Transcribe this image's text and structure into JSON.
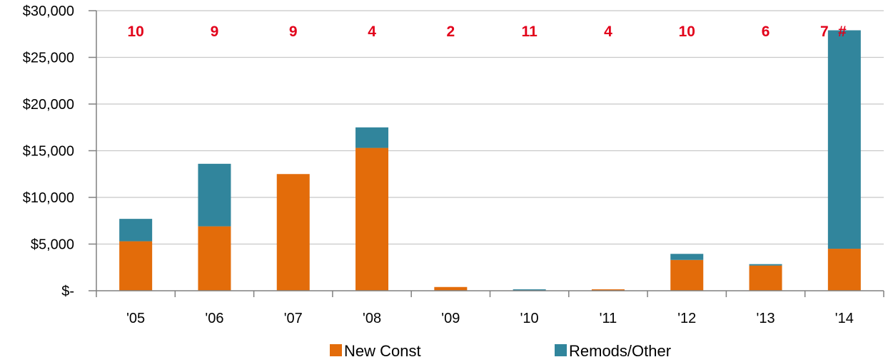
{
  "chart_data": {
    "type": "bar",
    "stacked": true,
    "categories": [
      "'05",
      "'06",
      "'07",
      "'08",
      "'09",
      "'10",
      "'11",
      "'12",
      "'13",
      "'14"
    ],
    "series": [
      {
        "name": "New Const",
        "color": "#e36c0a",
        "values": [
          5300,
          6900,
          12500,
          15300,
          400,
          0,
          150,
          3300,
          2700,
          4500
        ]
      },
      {
        "name": "Remods/Other",
        "color": "#31859c",
        "values": [
          2400,
          6700,
          0,
          2200,
          0,
          150,
          0,
          650,
          150,
          23400
        ]
      }
    ],
    "counts": [
      "10",
      "9",
      "9",
      "4",
      "2",
      "11",
      "4",
      "10",
      "6",
      "7"
    ],
    "count_overflow_label": "#",
    "count_color": "#e2001a",
    "ylim": [
      0,
      30000
    ],
    "y_ticks": [
      {
        "value": 0,
        "label": "$-"
      },
      {
        "value": 5000,
        "label": "$5,000"
      },
      {
        "value": 10000,
        "label": "$10,000"
      },
      {
        "value": 15000,
        "label": "$15,000"
      },
      {
        "value": 20000,
        "label": "$20,000"
      },
      {
        "value": 25000,
        "label": "$25,000"
      },
      {
        "value": 30000,
        "label": "$30,000"
      }
    ],
    "grid": true,
    "legend_position": "bottom",
    "title": "",
    "xlabel": "",
    "ylabel": ""
  }
}
